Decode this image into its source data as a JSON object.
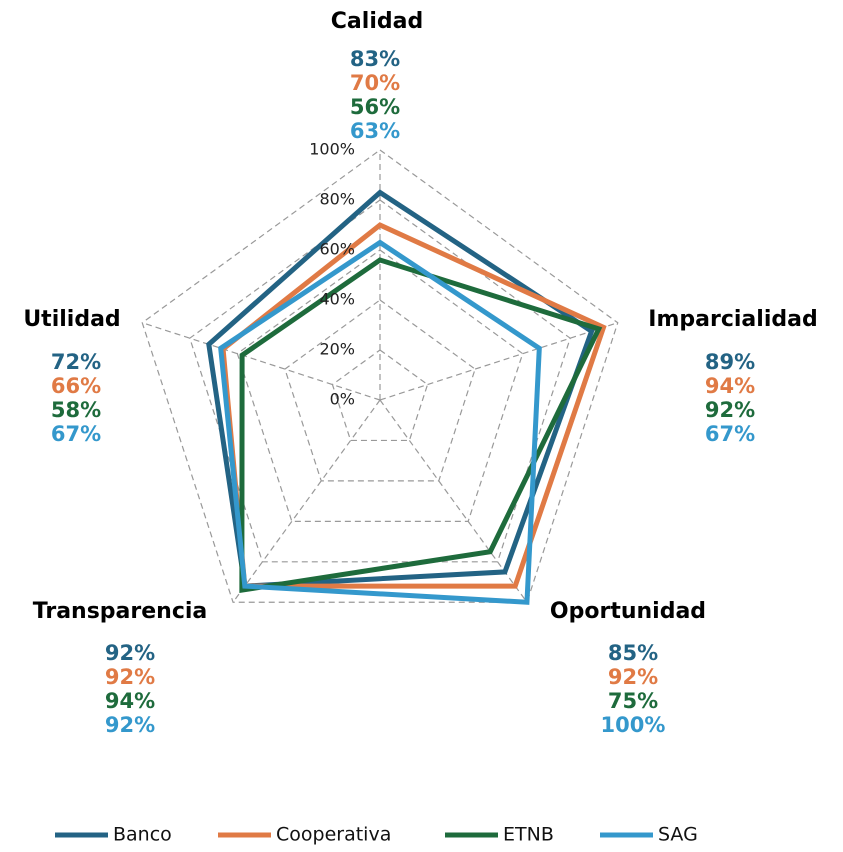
{
  "chart_data": {
    "type": "radar",
    "categories": [
      "Calidad",
      "Imparcialidad",
      "Oportunidad",
      "Transparencia",
      "Utilidad"
    ],
    "series": [
      {
        "name": "Banco",
        "color": "#236384",
        "values": [
          83,
          89,
          85,
          92,
          72
        ],
        "value_labels": [
          "83%",
          "89%",
          "85%",
          "92%",
          "72%"
        ]
      },
      {
        "name": "Cooperativa",
        "color": "#e07a45",
        "values": [
          70,
          94,
          92,
          92,
          66
        ],
        "value_labels": [
          "70%",
          "94%",
          "92%",
          "92%",
          "66%"
        ]
      },
      {
        "name": "ETNB",
        "color": "#1e6b3c",
        "values": [
          56,
          92,
          75,
          94,
          58
        ],
        "value_labels": [
          "56%",
          "92%",
          "75%",
          "94%",
          "58%"
        ]
      },
      {
        "name": "SAG",
        "color": "#3498cc",
        "values": [
          63,
          67,
          100,
          92,
          67
        ],
        "value_labels": [
          "63%",
          "67%",
          "100%",
          "92%",
          "67%"
        ]
      }
    ],
    "ylim": [
      0,
      100
    ],
    "yticks": [
      {
        "value": 0,
        "label": "0%"
      },
      {
        "value": 20,
        "label": "20%"
      },
      {
        "value": 40,
        "label": "40%"
      },
      {
        "value": 60,
        "label": "60%"
      },
      {
        "value": 80,
        "label": "80%"
      },
      {
        "value": 100,
        "label": "100%"
      }
    ],
    "grid": true,
    "legend": "bottom"
  }
}
